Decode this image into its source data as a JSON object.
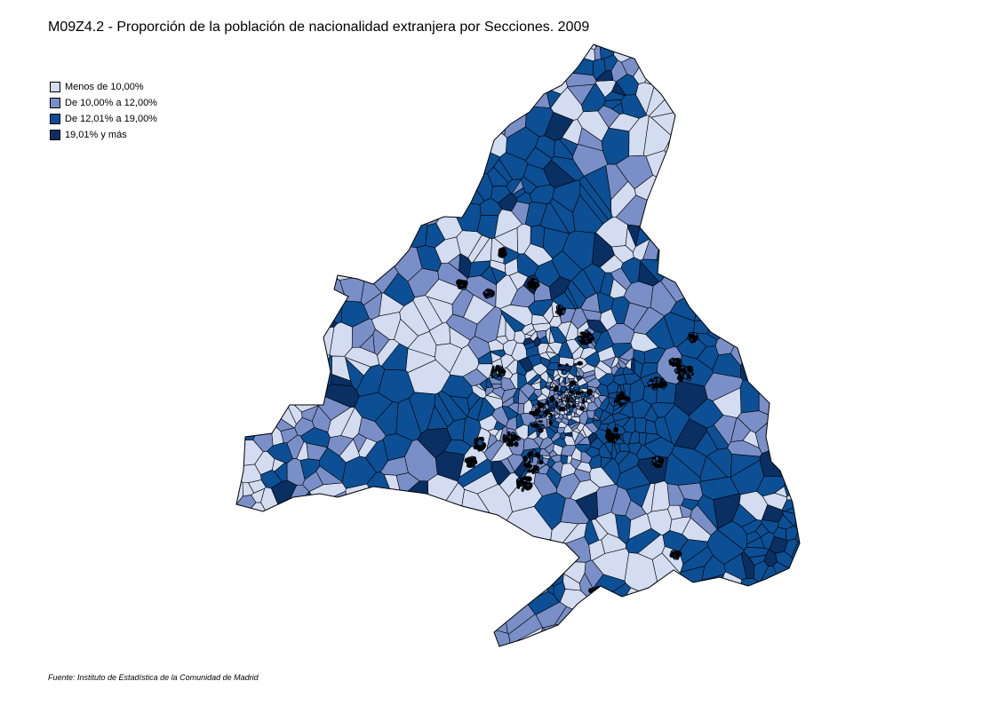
{
  "title": "M09Z4.2 - Proporción de la población de nacionalidad extranjera por Secciones. 2009",
  "legend": {
    "items": [
      {
        "label": "Menos de 10,00%",
        "color": "#d3dcf0"
      },
      {
        "label": "De 10,00% a 12,00%",
        "color": "#7a8fc7"
      },
      {
        "label": "De 12,01% a 19,00%",
        "color": "#0d4f94"
      },
      {
        "label": "19,01% y más",
        "color": "#0a2f63"
      }
    ]
  },
  "source": "Fuente: Instituto de Estadística de la Comunidad de Madrid"
}
